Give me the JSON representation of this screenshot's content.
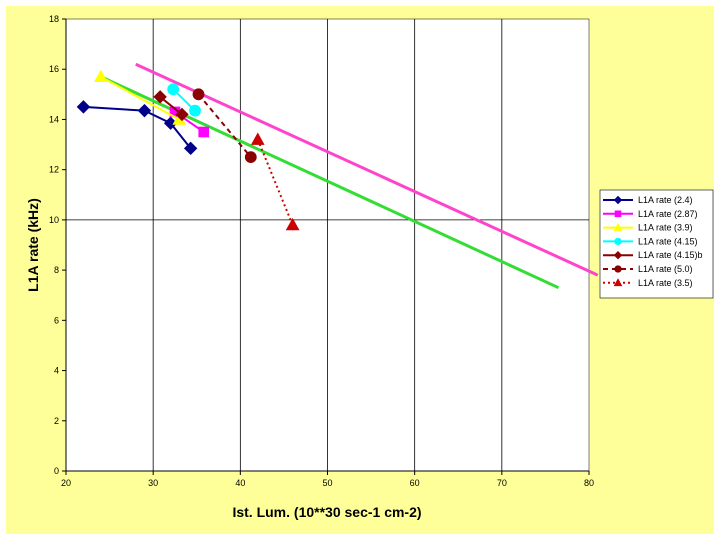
{
  "chart_data": {
    "type": "line",
    "xlabel": "Ist. Lum. (10**30 sec-1 cm-2)",
    "ylabel": "L1A rate (kHz)",
    "xlim": [
      20,
      80
    ],
    "ylim": [
      0,
      18
    ],
    "x_ticks": [
      "20",
      "30",
      "40",
      "50",
      "60",
      "70",
      "80"
    ],
    "y_ticks": [
      "0",
      "2",
      "4",
      "6",
      "8",
      "10",
      "12",
      "14",
      "16",
      "18"
    ],
    "gridlines": "vertical every 10, horizontal at 10",
    "legend_position": "right",
    "background_color": "#ffff99",
    "plot_background_color": "#ffffff",
    "series": [
      {
        "name": "L1A rate (2.4)",
        "color": "#00008b",
        "marker": "diamond",
        "dash": "solid",
        "x": [
          22,
          29,
          32,
          34.3
        ],
        "y": [
          14.5,
          14.35,
          13.85,
          12.85
        ]
      },
      {
        "name": "L1A rate (2.87)",
        "color": "#ff00ff",
        "marker": "square",
        "dash": "solid",
        "x": [
          32.5,
          35.8
        ],
        "y": [
          14.3,
          13.5
        ]
      },
      {
        "name": "L1A rate (3.9)",
        "color": "#ffff00",
        "marker": "triangle",
        "dash": "solid",
        "x": [
          24,
          33
        ],
        "y": [
          15.7,
          14.0
        ]
      },
      {
        "name": "L1A rate (4.15)",
        "color": "#00ffff",
        "marker": "circle",
        "dash": "solid",
        "x": [
          32.3,
          34.8
        ],
        "y": [
          15.2,
          14.35
        ]
      },
      {
        "name": "L1A rate (4.15)b",
        "color": "#8b0000",
        "marker": "diamond",
        "dash": "solid",
        "x": [
          30.8,
          33.3
        ],
        "y": [
          14.9,
          14.2
        ]
      },
      {
        "name": "L1A rate (5.0)",
        "color": "#8b0000",
        "marker": "circle",
        "dash": "dashed",
        "x": [
          35.2,
          41.2
        ],
        "y": [
          15.0,
          12.5
        ]
      },
      {
        "name": "L1A rate (3.5)",
        "color": "#cc0000",
        "marker": "triangle",
        "dash": "dotted",
        "x": [
          42.0,
          46.0
        ],
        "y": [
          13.2,
          9.8
        ]
      }
    ],
    "trend_lines": [
      {
        "color": "#ff44cc",
        "x": [
          28,
          81
        ],
        "y": [
          16.2,
          7.8
        ]
      },
      {
        "color": "#33dd33",
        "x": [
          24,
          76.5
        ],
        "y": [
          15.7,
          7.3
        ]
      }
    ]
  }
}
